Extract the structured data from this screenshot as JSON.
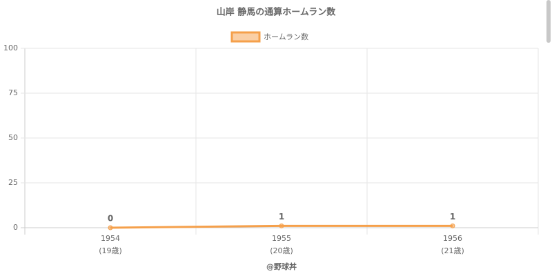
{
  "chart_data": {
    "type": "line",
    "title": "山岸 静馬の通算ホームラン数",
    "categories": [
      "1954",
      "1955",
      "1956"
    ],
    "category_sublabels": [
      "(19歳)",
      "(20歳)",
      "(21歳)"
    ],
    "x_label": "@野球丼",
    "series": [
      {
        "name": "ホームラン数",
        "color": "#f5a04b",
        "values": [
          0,
          1,
          1
        ]
      }
    ],
    "ylim": [
      0,
      100
    ],
    "yticks": [
      0,
      25,
      50,
      75,
      100
    ],
    "grid": true,
    "legend": "top"
  }
}
